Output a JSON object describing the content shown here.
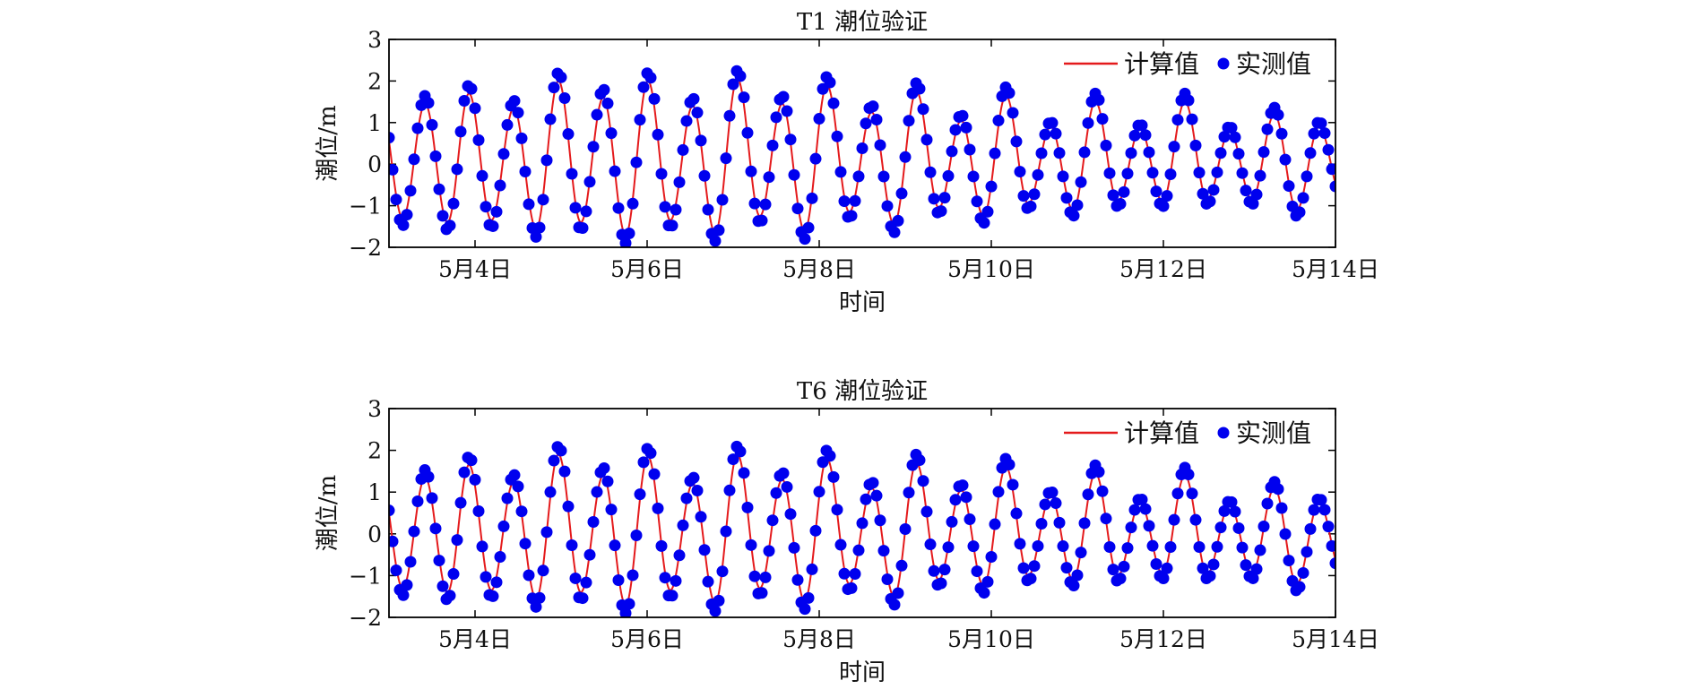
{
  "chart_data": [
    {
      "type": "line",
      "title": "T1 潮位验证",
      "xlabel": "时间",
      "ylabel": "潮位/m",
      "xlim": [
        "5月3日",
        "5月14日"
      ],
      "ylim": [
        -2,
        3
      ],
      "yticks": [
        3,
        2,
        1,
        0,
        -1,
        -2
      ],
      "xticks": [
        {
          "day": 4,
          "label": "5月4日"
        },
        {
          "day": 6,
          "label": "5月6日"
        },
        {
          "day": 8,
          "label": "5月8日"
        },
        {
          "day": 10,
          "label": "5月10日"
        },
        {
          "day": 12,
          "label": "5月12日"
        },
        {
          "day": 14,
          "label": "5月14日"
        }
      ],
      "legend": {
        "position": "top-right",
        "entries": [
          "计算值",
          "实测值"
        ]
      },
      "grid": false,
      "series": [
        {
          "name": "计算值",
          "kind": "line",
          "color": "#e41a1c",
          "tide": {
            "mean": 0.05,
            "period_days": 0.52,
            "start_day": 3.0,
            "end_day": 14.0,
            "extremes": [
              {
                "day": 3.16,
                "value": -1.35
              },
              {
                "day": 3.42,
                "value": 1.4
              },
              {
                "day": 3.68,
                "value": -1.45
              },
              {
                "day": 3.93,
                "value": 1.65
              },
              {
                "day": 4.19,
                "value": -1.4
              },
              {
                "day": 4.45,
                "value": 1.3
              },
              {
                "day": 4.71,
                "value": -1.6
              },
              {
                "day": 4.97,
                "value": 1.95
              },
              {
                "day": 5.23,
                "value": -1.45
              },
              {
                "day": 5.49,
                "value": 1.55
              },
              {
                "day": 5.75,
                "value": -1.75
              },
              {
                "day": 6.01,
                "value": 1.95
              },
              {
                "day": 6.27,
                "value": -1.4
              },
              {
                "day": 6.53,
                "value": 1.35
              },
              {
                "day": 6.79,
                "value": -1.7
              },
              {
                "day": 7.05,
                "value": 2.0
              },
              {
                "day": 7.31,
                "value": -1.3
              },
              {
                "day": 7.57,
                "value": 1.4
              },
              {
                "day": 7.83,
                "value": -1.65
              },
              {
                "day": 8.09,
                "value": 1.85
              },
              {
                "day": 8.35,
                "value": -1.2
              },
              {
                "day": 8.61,
                "value": 1.2
              },
              {
                "day": 8.87,
                "value": -1.5
              },
              {
                "day": 9.13,
                "value": 1.7
              },
              {
                "day": 9.39,
                "value": -1.1
              },
              {
                "day": 9.65,
                "value": 1.0
              },
              {
                "day": 9.91,
                "value": -1.3
              },
              {
                "day": 10.17,
                "value": 1.6
              },
              {
                "day": 10.43,
                "value": -1.0
              },
              {
                "day": 10.69,
                "value": 0.85
              },
              {
                "day": 10.95,
                "value": -1.15
              },
              {
                "day": 11.21,
                "value": 1.45
              },
              {
                "day": 11.47,
                "value": -0.95
              },
              {
                "day": 11.73,
                "value": 0.8
              },
              {
                "day": 11.99,
                "value": -0.95
              },
              {
                "day": 12.25,
                "value": 1.45
              },
              {
                "day": 12.51,
                "value": -0.9
              },
              {
                "day": 12.77,
                "value": 0.75
              },
              {
                "day": 13.03,
                "value": -0.9
              },
              {
                "day": 13.29,
                "value": 1.15
              },
              {
                "day": 13.55,
                "value": -1.15
              },
              {
                "day": 13.81,
                "value": 0.85
              },
              {
                "day": 14.07,
                "value": -0.8
              }
            ]
          }
        },
        {
          "name": "实测值",
          "kind": "scatter",
          "color": "#0000ee",
          "sampling": {
            "interval_hours": 1,
            "peak_bias_m": 0.2
          }
        }
      ]
    },
    {
      "type": "line",
      "title": "T6 潮位验证",
      "xlabel": "时间",
      "ylabel": "潮位/m",
      "xlim": [
        "5月3日",
        "5月14日"
      ],
      "ylim": [
        -2,
        3
      ],
      "yticks": [
        3,
        2,
        1,
        0,
        -1,
        -2
      ],
      "xticks": [
        {
          "day": 4,
          "label": "5月4日"
        },
        {
          "day": 6,
          "label": "5月6日"
        },
        {
          "day": 8,
          "label": "5月8日"
        },
        {
          "day": 10,
          "label": "5月10日"
        },
        {
          "day": 12,
          "label": "5月12日"
        },
        {
          "day": 14,
          "label": "5月14日"
        }
      ],
      "legend": {
        "position": "top-right",
        "entries": [
          "计算值",
          "实测值"
        ]
      },
      "grid": false,
      "series": [
        {
          "name": "计算值",
          "kind": "line",
          "color": "#e41a1c",
          "tide": {
            "mean": 0.0,
            "period_days": 0.52,
            "start_day": 3.0,
            "end_day": 14.0,
            "extremes": [
              {
                "day": 3.16,
                "value": -1.3
              },
              {
                "day": 3.42,
                "value": 1.35
              },
              {
                "day": 3.68,
                "value": -1.4
              },
              {
                "day": 3.93,
                "value": 1.65
              },
              {
                "day": 4.19,
                "value": -1.35
              },
              {
                "day": 4.45,
                "value": 1.25
              },
              {
                "day": 4.71,
                "value": -1.55
              },
              {
                "day": 4.97,
                "value": 1.9
              },
              {
                "day": 5.23,
                "value": -1.4
              },
              {
                "day": 5.49,
                "value": 1.4
              },
              {
                "day": 5.75,
                "value": -1.7
              },
              {
                "day": 6.01,
                "value": 1.85
              },
              {
                "day": 6.27,
                "value": -1.35
              },
              {
                "day": 6.53,
                "value": 1.2
              },
              {
                "day": 6.79,
                "value": -1.65
              },
              {
                "day": 7.05,
                "value": 1.9
              },
              {
                "day": 7.31,
                "value": -1.3
              },
              {
                "day": 7.57,
                "value": 1.3
              },
              {
                "day": 7.83,
                "value": -1.6
              },
              {
                "day": 8.09,
                "value": 1.8
              },
              {
                "day": 8.35,
                "value": -1.2
              },
              {
                "day": 8.61,
                "value": 1.1
              },
              {
                "day": 8.87,
                "value": -1.5
              },
              {
                "day": 9.13,
                "value": 1.7
              },
              {
                "day": 9.39,
                "value": -1.1
              },
              {
                "day": 9.65,
                "value": 1.05
              },
              {
                "day": 9.91,
                "value": -1.25
              },
              {
                "day": 10.17,
                "value": 1.6
              },
              {
                "day": 10.43,
                "value": -1.0
              },
              {
                "day": 10.69,
                "value": 0.9
              },
              {
                "day": 10.95,
                "value": -1.1
              },
              {
                "day": 11.21,
                "value": 1.45
              },
              {
                "day": 11.47,
                "value": -1.0
              },
              {
                "day": 11.73,
                "value": 0.75
              },
              {
                "day": 11.99,
                "value": -0.95
              },
              {
                "day": 12.25,
                "value": 1.4
              },
              {
                "day": 12.51,
                "value": -0.95
              },
              {
                "day": 12.77,
                "value": 0.7
              },
              {
                "day": 13.03,
                "value": -0.95
              },
              {
                "day": 13.29,
                "value": 1.1
              },
              {
                "day": 13.55,
                "value": -1.2
              },
              {
                "day": 13.81,
                "value": 0.75
              },
              {
                "day": 14.07,
                "value": -0.9
              }
            ]
          }
        },
        {
          "name": "实测值",
          "kind": "scatter",
          "color": "#0000ee",
          "sampling": {
            "interval_hours": 1,
            "peak_bias_m": 0.2
          }
        }
      ]
    }
  ]
}
